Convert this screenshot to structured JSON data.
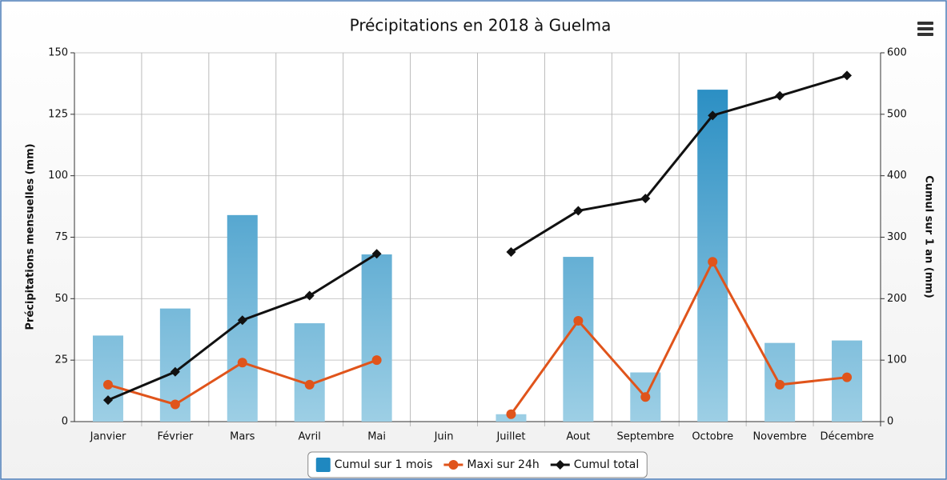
{
  "chart_data": {
    "type": "bar",
    "title": "Précipitations en 2018 à Guelma",
    "y_label": "Précipitations mensuelles (mm)",
    "y2_label": "Cumul sur 1 an (mm)",
    "categories": [
      "Janvier",
      "Février",
      "Mars",
      "Avril",
      "Mai",
      "Juin",
      "Juillet",
      "Aout",
      "Septembre",
      "Octobre",
      "Novembre",
      "Décembre"
    ],
    "series": [
      {
        "name": "Cumul sur 1 mois",
        "type": "bar",
        "color": "#1f88c0",
        "values": [
          35,
          46,
          84,
          40,
          68,
          0,
          3,
          67,
          20,
          135,
          32,
          33
        ]
      },
      {
        "name": "Maxi sur 24h",
        "type": "line",
        "marker": "circle",
        "color": "#e0541b",
        "values": [
          15,
          7,
          24,
          15,
          25,
          null,
          3,
          41,
          10,
          65,
          15,
          18
        ]
      },
      {
        "name": "Cumul total",
        "type": "line",
        "marker": "diamond",
        "axis": "y2",
        "color": "#111111",
        "values": [
          35,
          81,
          165,
          205,
          273,
          null,
          276,
          343,
          363,
          498,
          530,
          563
        ]
      }
    ],
    "ylim": [
      0,
      150
    ],
    "yticks": [
      0,
      25,
      50,
      75,
      100,
      125,
      150
    ],
    "y2lim": [
      0,
      600
    ],
    "y2ticks": [
      0,
      100,
      200,
      300,
      400,
      500,
      600
    ],
    "grid": true,
    "legend": "bottom"
  }
}
